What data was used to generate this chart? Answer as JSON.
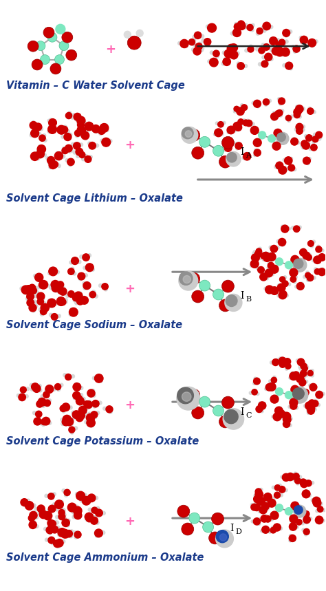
{
  "bg_color": "#ffffff",
  "text_color": "#1a3a8a",
  "sections": [
    {
      "label": "Vitamin – C Water Solvent Cage",
      "subscript": ""
    },
    {
      "label": "Solvent Cage Lithium – Oxalate",
      "subscript": "A"
    },
    {
      "label": "Solvent Cage Sodium – Oxalate",
      "subscript": "B"
    },
    {
      "label": "Solvent Cage Potassium – Oxalate",
      "subscript": "C"
    },
    {
      "label": "Solvent Cage Ammonium – Oxalate",
      "subscript": "D"
    }
  ],
  "O_color": "#cc0000",
  "H_color": "#d8d8d8",
  "C_color": "#7de8c0",
  "Li_color": "#909090",
  "Na_color": "#909090",
  "K_color": "#686868",
  "NH4_color": "#1a4aaa",
  "arrow_color": "#444444",
  "plus_color": "#ff69b4",
  "label_fontsize": 10.5,
  "label_color": "#1a3a8a"
}
